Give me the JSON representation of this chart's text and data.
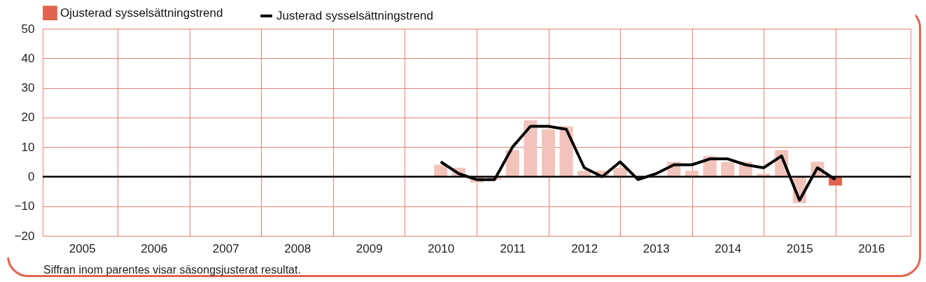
{
  "chart_data": {
    "type": "bar",
    "legend": "top",
    "grid": true,
    "x": [
      2010.5,
      2010.75,
      2011,
      2011.25,
      2011.5,
      2011.75,
      2012,
      2012.25,
      2012.5,
      2012.75,
      2013,
      2013.25,
      2013.5,
      2013.75,
      2014,
      2014.25,
      2014.5,
      2014.75,
      2015,
      2015.25,
      2015.5,
      2015.75,
      2016
    ],
    "xlim": [
      2005,
      2017
    ],
    "xticks": [
      {
        "value": 2005.5,
        "label": "2005"
      },
      {
        "value": 2006,
        "label": null
      },
      {
        "value": 2006.5,
        "label": "2006"
      },
      {
        "value": 2007,
        "label": null
      },
      {
        "value": 2007.5,
        "label": "2007"
      },
      {
        "value": 2008,
        "label": null
      },
      {
        "value": 2008.5,
        "label": "2008"
      },
      {
        "value": 2009,
        "label": null
      },
      {
        "value": 2009.5,
        "label": "2009"
      },
      {
        "value": 2010,
        "label": null
      },
      {
        "value": 2010.5,
        "label": "2010"
      },
      {
        "value": 2011,
        "label": null
      },
      {
        "value": 2011.5,
        "label": "2011"
      },
      {
        "value": 2012,
        "label": null
      },
      {
        "value": 2012.5,
        "label": "2012"
      },
      {
        "value": 2013,
        "label": null
      },
      {
        "value": 2013.5,
        "label": "2013"
      },
      {
        "value": 2014,
        "label": null
      },
      {
        "value": 2014.5,
        "label": "2014"
      },
      {
        "value": 2015,
        "label": null
      },
      {
        "value": 2015.5,
        "label": "2015"
      },
      {
        "value": 2016,
        "label": null
      },
      {
        "value": 2016.5,
        "label": "2016"
      }
    ],
    "ylim": [
      -20,
      50
    ],
    "yticks": [
      -20,
      -10,
      0,
      10,
      20,
      30,
      40,
      50
    ],
    "series": [
      {
        "name": "Ojusterad sysselsättningstrend",
        "color": "#e0644f",
        "colors": [
          "#f2c3bb",
          "#f2c3bb",
          "#f2c3bb",
          "#f2c3bb",
          "#f2c3bb",
          "#f2c3bb",
          "#f2c3bb",
          "#f2c3bb",
          "#f2c3bb",
          "#f2c3bb",
          "#f2c3bb",
          "#f2c3bb",
          "#f2c3bb",
          "#f2c3bb",
          "#f2c3bb",
          "#f2c3bb",
          "#f2c3bb",
          "#f2c3bb",
          "#f2c3bb",
          "#f2c3bb",
          "#f2c3bb",
          "#f2c3bb",
          "#e0644f"
        ],
        "values": [
          4,
          3,
          -2,
          -1,
          9,
          19,
          16,
          17,
          2,
          2,
          3,
          0,
          0,
          5,
          2,
          7,
          5,
          5,
          1,
          9,
          -9,
          5,
          -3
        ]
      },
      {
        "name": "Justerad sysselsättningstrend",
        "type": "line",
        "color": "#000000",
        "values": [
          5,
          1,
          -1,
          -1,
          10,
          17,
          17,
          16,
          3,
          0,
          5,
          -1,
          1,
          4,
          4,
          6,
          6,
          4,
          3,
          7,
          -8,
          3,
          -1
        ]
      }
    ],
    "ref_lines": [
      {
        "axis": "y",
        "value": 0,
        "color": "#000000"
      }
    ],
    "annotations": [
      "Siffran inom parentes visar säsongsjusterat resultat."
    ]
  }
}
